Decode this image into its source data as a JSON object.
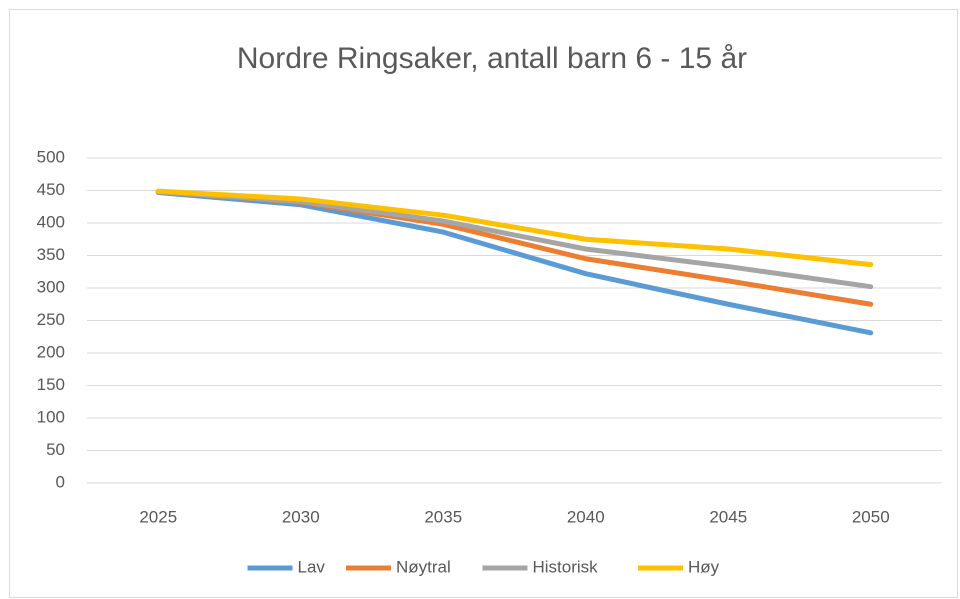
{
  "chart_data": {
    "type": "line",
    "title": "Nordre Ringsaker, antall barn 6 - 15 år",
    "categories": [
      "2025",
      "2030",
      "2035",
      "2040",
      "2045",
      "2050"
    ],
    "series": [
      {
        "name": "Lav",
        "color": "#5b9bd5",
        "values": [
          447,
          428,
          386,
          322,
          275,
          231
        ]
      },
      {
        "name": "Nøytral",
        "color": "#ed7d31",
        "values": [
          448,
          432,
          398,
          345,
          311,
          275
        ]
      },
      {
        "name": "Historisk",
        "color": "#a5a5a5",
        "values": [
          448,
          433,
          403,
          360,
          333,
          302
        ]
      },
      {
        "name": "Høy",
        "color": "#ffc000",
        "values": [
          449,
          437,
          412,
          375,
          360,
          336
        ]
      }
    ],
    "ylim": [
      0,
      500
    ],
    "yticks": [
      0,
      50,
      100,
      150,
      200,
      250,
      300,
      350,
      400,
      450,
      500
    ],
    "grid": true,
    "legend": "bottom"
  }
}
